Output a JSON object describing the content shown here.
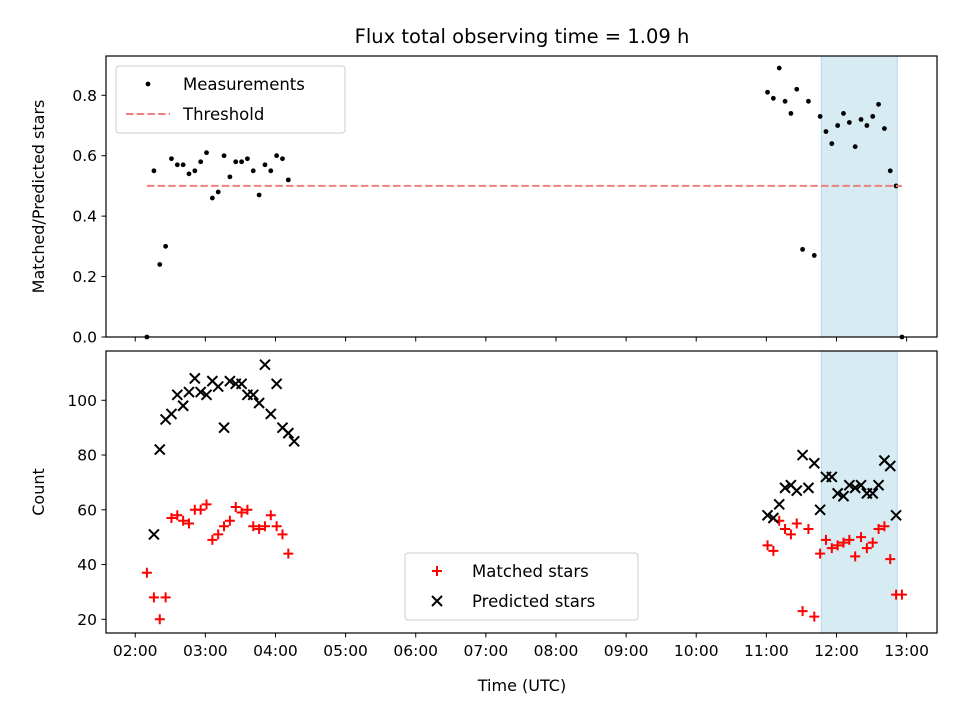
{
  "chart_data": {
    "type": "scatter",
    "title": "Flux total observing time = 1.09 h",
    "xlabel": "Time (UTC)",
    "x_ticks": [
      "02:00",
      "03:00",
      "04:00",
      "05:00",
      "06:00",
      "07:00",
      "08:00",
      "09:00",
      "10:00",
      "11:00",
      "12:00",
      "13:00"
    ],
    "xlim": [
      "01:35",
      "13:26"
    ],
    "shaded_interval": [
      "11:47",
      "12:52"
    ],
    "colors": {
      "measurements": "#000000",
      "threshold": "#f08080",
      "matched": "#ff0000",
      "predicted": "#000000",
      "shade": "#add8e6"
    },
    "panels": [
      {
        "ylabel": "Matched/Predicted stars",
        "ylim": [
          0,
          0.93
        ],
        "y_ticks": [
          "0.0",
          "0.2",
          "0.4",
          "0.6",
          "0.8"
        ],
        "legend": {
          "placement": "upper left",
          "entries": [
            "Measurements",
            "Threshold"
          ]
        },
        "series": [
          {
            "name": "Measurements",
            "marker": "dot",
            "points": [
              [
                "02:10",
                0.0
              ],
              [
                "02:16",
                0.55
              ],
              [
                "02:21",
                0.24
              ],
              [
                "02:26",
                0.3
              ],
              [
                "02:31",
                0.59
              ],
              [
                "02:36",
                0.57
              ],
              [
                "02:41",
                0.57
              ],
              [
                "02:46",
                0.54
              ],
              [
                "02:51",
                0.55
              ],
              [
                "02:56",
                0.58
              ],
              [
                "03:01",
                0.61
              ],
              [
                "03:06",
                0.46
              ],
              [
                "03:11",
                0.48
              ],
              [
                "03:16",
                0.6
              ],
              [
                "03:21",
                0.53
              ],
              [
                "03:26",
                0.58
              ],
              [
                "03:31",
                0.58
              ],
              [
                "03:36",
                0.59
              ],
              [
                "03:41",
                0.55
              ],
              [
                "03:46",
                0.47
              ],
              [
                "03:51",
                0.57
              ],
              [
                "03:56",
                0.55
              ],
              [
                "04:01",
                0.6
              ],
              [
                "04:06",
                0.59
              ],
              [
                "04:11",
                0.52
              ],
              [
                "11:01",
                0.81
              ],
              [
                "11:06",
                0.79
              ],
              [
                "11:11",
                0.89
              ],
              [
                "11:16",
                0.78
              ],
              [
                "11:21",
                0.74
              ],
              [
                "11:26",
                0.82
              ],
              [
                "11:31",
                0.29
              ],
              [
                "11:36",
                0.78
              ],
              [
                "11:41",
                0.27
              ],
              [
                "11:46",
                0.73
              ],
              [
                "11:51",
                0.68
              ],
              [
                "11:56",
                0.64
              ],
              [
                "12:01",
                0.7
              ],
              [
                "12:06",
                0.74
              ],
              [
                "12:11",
                0.71
              ],
              [
                "12:16",
                0.63
              ],
              [
                "12:21",
                0.72
              ],
              [
                "12:26",
                0.7
              ],
              [
                "12:31",
                0.73
              ],
              [
                "12:36",
                0.77
              ],
              [
                "12:41",
                0.69
              ],
              [
                "12:46",
                0.55
              ],
              [
                "12:51",
                0.5
              ],
              [
                "12:56",
                0.0
              ]
            ]
          },
          {
            "name": "Threshold",
            "marker": "dashed-line",
            "points": [
              [
                "02:10",
                0.5
              ],
              [
                "12:56",
                0.5
              ]
            ]
          }
        ]
      },
      {
        "ylabel": "Count",
        "ylim": [
          15,
          118
        ],
        "y_ticks": [
          "20",
          "40",
          "60",
          "80",
          "100"
        ],
        "legend": {
          "placement": "lower center",
          "entries": [
            "Matched stars",
            "Predicted stars"
          ]
        },
        "series": [
          {
            "name": "Matched stars",
            "marker": "plus",
            "points": [
              [
                "02:10",
                37
              ],
              [
                "02:16",
                28
              ],
              [
                "02:21",
                20
              ],
              [
                "02:26",
                28
              ],
              [
                "02:31",
                57
              ],
              [
                "02:36",
                58
              ],
              [
                "02:41",
                56
              ],
              [
                "02:46",
                55
              ],
              [
                "02:51",
                60
              ],
              [
                "02:56",
                60
              ],
              [
                "03:01",
                62
              ],
              [
                "03:06",
                49
              ],
              [
                "03:11",
                51
              ],
              [
                "03:16",
                54
              ],
              [
                "03:21",
                56
              ],
              [
                "03:26",
                61
              ],
              [
                "03:31",
                59
              ],
              [
                "03:36",
                60
              ],
              [
                "03:41",
                54
              ],
              [
                "03:46",
                53
              ],
              [
                "03:51",
                54
              ],
              [
                "03:56",
                58
              ],
              [
                "04:01",
                54
              ],
              [
                "04:06",
                51
              ],
              [
                "04:11",
                44
              ],
              [
                "11:01",
                47
              ],
              [
                "11:06",
                45
              ],
              [
                "11:11",
                56
              ],
              [
                "11:16",
                53
              ],
              [
                "11:21",
                51
              ],
              [
                "11:26",
                55
              ],
              [
                "11:31",
                23
              ],
              [
                "11:36",
                53
              ],
              [
                "11:41",
                21
              ],
              [
                "11:46",
                44
              ],
              [
                "11:51",
                49
              ],
              [
                "11:56",
                46
              ],
              [
                "12:01",
                47
              ],
              [
                "12:06",
                48
              ],
              [
                "12:11",
                49
              ],
              [
                "12:16",
                43
              ],
              [
                "12:21",
                50
              ],
              [
                "12:26",
                46
              ],
              [
                "12:31",
                48
              ],
              [
                "12:36",
                53
              ],
              [
                "12:41",
                54
              ],
              [
                "12:46",
                42
              ],
              [
                "12:51",
                29
              ],
              [
                "12:56",
                29
              ]
            ]
          },
          {
            "name": "Predicted stars",
            "marker": "x",
            "points": [
              [
                "02:16",
                51
              ],
              [
                "02:21",
                82
              ],
              [
                "02:26",
                93
              ],
              [
                "02:31",
                95
              ],
              [
                "02:36",
                102
              ],
              [
                "02:41",
                98
              ],
              [
                "02:46",
                103
              ],
              [
                "02:51",
                108
              ],
              [
                "02:56",
                103
              ],
              [
                "03:01",
                102
              ],
              [
                "03:06",
                107
              ],
              [
                "03:11",
                105
              ],
              [
                "03:16",
                90
              ],
              [
                "03:21",
                107
              ],
              [
                "03:26",
                106
              ],
              [
                "03:31",
                106
              ],
              [
                "03:36",
                102
              ],
              [
                "03:41",
                102
              ],
              [
                "03:46",
                99
              ],
              [
                "03:51",
                113
              ],
              [
                "03:56",
                95
              ],
              [
                "04:01",
                106
              ],
              [
                "04:06",
                90
              ],
              [
                "04:11",
                88
              ],
              [
                "04:16",
                85
              ],
              [
                "11:01",
                58
              ],
              [
                "11:06",
                57
              ],
              [
                "11:11",
                62
              ],
              [
                "11:16",
                68
              ],
              [
                "11:21",
                69
              ],
              [
                "11:26",
                67
              ],
              [
                "11:31",
                80
              ],
              [
                "11:36",
                68
              ],
              [
                "11:41",
                77
              ],
              [
                "11:46",
                60
              ],
              [
                "11:51",
                72
              ],
              [
                "11:56",
                72
              ],
              [
                "12:01",
                66
              ],
              [
                "12:06",
                65
              ],
              [
                "12:11",
                69
              ],
              [
                "12:16",
                68
              ],
              [
                "12:21",
                69
              ],
              [
                "12:26",
                66
              ],
              [
                "12:31",
                66
              ],
              [
                "12:36",
                69
              ],
              [
                "12:41",
                78
              ],
              [
                "12:46",
                76
              ],
              [
                "12:51",
                58
              ]
            ]
          }
        ]
      }
    ]
  }
}
